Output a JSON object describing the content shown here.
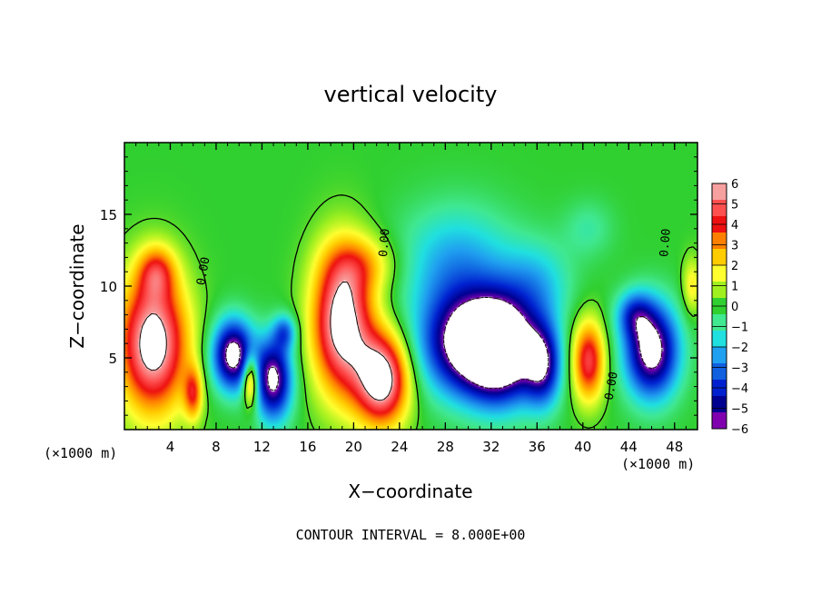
{
  "chart_data": {
    "type": "heatmap",
    "title": "vertical velocity",
    "xlabel": "X−coordinate",
    "ylabel": "Z−coordinate",
    "x_unit_left": "(×1000 m)",
    "x_unit_right": "(×1000 m)",
    "xlim": [
      0,
      50
    ],
    "ylim": [
      0,
      20
    ],
    "x_ticks": [
      4,
      8,
      12,
      16,
      20,
      24,
      28,
      32,
      36,
      40,
      44,
      48
    ],
    "y_ticks": [
      5,
      10,
      15
    ],
    "footer": "CONTOUR INTERVAL = 8.000E+00",
    "contour_labels": [
      "0.00",
      "0.00",
      "0.00",
      "0.00"
    ],
    "colorbar": {
      "ticks": [
        6,
        5,
        4,
        3,
        2,
        1,
        0,
        -1,
        -2,
        -3,
        -4,
        -5,
        -6
      ],
      "tick_labels": [
        "6",
        "5",
        "4",
        "3",
        "2",
        "1",
        "0",
        "−1",
        "−2",
        "−3",
        "−4",
        "−5",
        "−6"
      ],
      "colors": [
        "#f7a0a0",
        "#ff5050",
        "#ee1010",
        "#ff8000",
        "#ffcc00",
        "#ffff30",
        "#a0f020",
        "#30d030",
        "#40e890",
        "#20e0e0",
        "#20a0f0",
        "#1060e0",
        "#0020d0",
        "#000090",
        "#8000b0"
      ]
    },
    "blobs": [
      {
        "x": 2.5,
        "z": 6.0,
        "w": 7.0,
        "rx": 3.0,
        "rz": 4.8
      },
      {
        "x": 2.8,
        "z": 11.0,
        "w": 3.0,
        "rx": 1.6,
        "rz": 1.8
      },
      {
        "x": 6.0,
        "z": 2.5,
        "w": 3.5,
        "rx": 0.8,
        "rz": 1.8
      },
      {
        "x": 9.5,
        "z": 5.2,
        "w": -7.0,
        "rx": 1.8,
        "rz": 2.4
      },
      {
        "x": 13.0,
        "z": 3.5,
        "w": -6.5,
        "rx": 1.6,
        "rz": 2.8
      },
      {
        "x": 14.0,
        "z": 6.8,
        "w": -3.0,
        "rx": 1.0,
        "rz": 1.2
      },
      {
        "x": 11.0,
        "z": 3.5,
        "w": 5.0,
        "rx": 0.7,
        "rz": 1.8
      },
      {
        "x": 19.0,
        "z": 7.5,
        "w": 7.0,
        "rx": 2.6,
        "rz": 5.0
      },
      {
        "x": 22.5,
        "z": 3.5,
        "w": 7.0,
        "rx": 2.3,
        "rz": 3.2
      },
      {
        "x": 21.0,
        "z": 11.5,
        "w": 2.0,
        "rx": 3.0,
        "rz": 2.0
      },
      {
        "x": 30.0,
        "z": 6.0,
        "w": -7.0,
        "rx": 4.0,
        "rz": 3.5
      },
      {
        "x": 33.0,
        "z": 5.5,
        "w": -7.0,
        "rx": 3.0,
        "rz": 3.5
      },
      {
        "x": 29.0,
        "z": 11.5,
        "w": -2.5,
        "rx": 5.0,
        "rz": 4.0
      },
      {
        "x": 36.5,
        "z": 4.5,
        "w": -5.0,
        "rx": 1.6,
        "rz": 2.8
      },
      {
        "x": 36.0,
        "z": 10.0,
        "w": -2.0,
        "rx": 3.0,
        "rz": 3.0
      },
      {
        "x": 40.5,
        "z": 4.8,
        "w": 5.0,
        "rx": 1.4,
        "rz": 2.8
      },
      {
        "x": 46.0,
        "z": 5.5,
        "w": -7.0,
        "rx": 2.3,
        "rz": 3.2
      },
      {
        "x": 44.5,
        "z": 8.0,
        "w": -3.0,
        "rx": 1.6,
        "rz": 1.6
      },
      {
        "x": 49.5,
        "z": 10.0,
        "w": 2.0,
        "rx": 0.8,
        "rz": 2.0
      },
      {
        "x": 40.5,
        "z": 14.0,
        "w": -1.0,
        "rx": 2.2,
        "rz": 2.0
      }
    ]
  }
}
